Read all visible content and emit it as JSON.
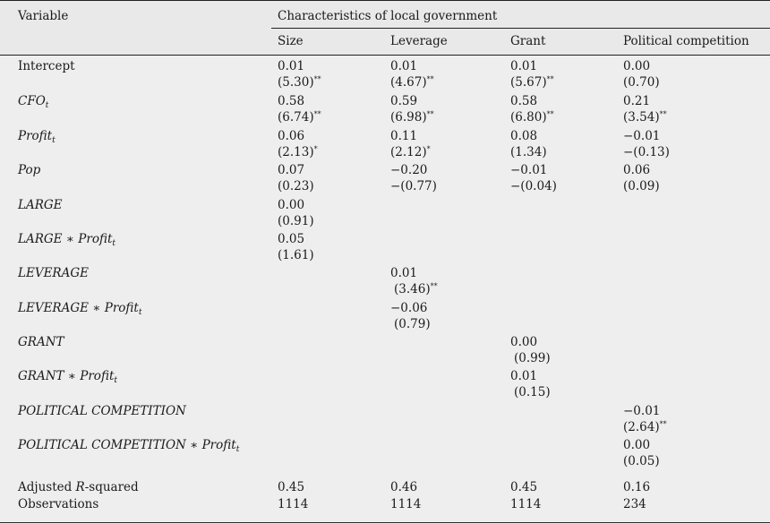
{
  "header": {
    "variable": "Variable",
    "group": "Characteristics of local government",
    "columns": [
      "Size",
      "Leverage",
      "Grant",
      "Political competition"
    ]
  },
  "rows": [
    {
      "label": "Intercept",
      "italic": false,
      "sub": "",
      "cells": [
        [
          "0.01",
          "(5.30)",
          "**"
        ],
        [
          "0.01",
          "(4.67)",
          "**"
        ],
        [
          "0.01",
          "(5.67)",
          "**"
        ],
        [
          "0.00",
          "(0.70)",
          ""
        ]
      ]
    },
    {
      "label": "CFO",
      "italic": true,
      "sub": "t",
      "cells": [
        [
          "0.58",
          "(6.74)",
          "**"
        ],
        [
          "0.59",
          "(6.98)",
          "**"
        ],
        [
          "0.58",
          "(6.80)",
          "**"
        ],
        [
          "0.21",
          "(3.54)",
          "**"
        ]
      ]
    },
    {
      "label": "Profit",
      "italic": true,
      "sub": "t",
      "cells": [
        [
          "0.06",
          "(2.13)",
          "*"
        ],
        [
          "0.11",
          "(2.12)",
          "*"
        ],
        [
          "0.08",
          "(1.34)",
          ""
        ],
        [
          "−0.01",
          "−(0.13)",
          ""
        ]
      ]
    },
    {
      "label": "Pop",
      "italic": true,
      "sub": "",
      "cells": [
        [
          "0.07",
          "(0.23)",
          ""
        ],
        [
          "−0.20",
          "−(0.77)",
          ""
        ],
        [
          "−0.01",
          "−(0.04)",
          ""
        ],
        [
          "0.06",
          "(0.09)",
          ""
        ]
      ]
    },
    {
      "label": "LARGE",
      "italic": true,
      "sub": "",
      "cells": [
        [
          "0.00",
          "(0.91)",
          ""
        ],
        null,
        null,
        null
      ]
    },
    {
      "label": "LARGE ∗ Profit",
      "italic": true,
      "sub": "t",
      "cells": [
        [
          "0.05",
          "(1.61)",
          ""
        ],
        null,
        null,
        null
      ]
    },
    {
      "label": "LEVERAGE",
      "italic": true,
      "sub": "",
      "cells": [
        null,
        [
          "0.01",
          "(3.46)",
          "**"
        ],
        null,
        null
      ]
    },
    {
      "label": "LEVERAGE ∗ Profit",
      "italic": true,
      "sub": "t",
      "cells": [
        null,
        [
          "−0.06",
          "(0.79)",
          ""
        ],
        null,
        null
      ]
    },
    {
      "label": "GRANT",
      "italic": true,
      "sub": "",
      "cells": [
        null,
        null,
        [
          "0.00",
          "(0.99)",
          ""
        ],
        null
      ]
    },
    {
      "label": "GRANT ∗ Profit",
      "italic": true,
      "sub": "t",
      "cells": [
        null,
        null,
        [
          "0.01",
          "(0.15)",
          ""
        ],
        null
      ]
    },
    {
      "label": "POLITICAL COMPETITION",
      "italic": true,
      "sub": "",
      "cells": [
        null,
        null,
        null,
        [
          "−0.01",
          "(2.64)",
          "**"
        ]
      ]
    },
    {
      "label": "POLITICAL COMPETITION ∗ Profit",
      "italic": true,
      "sub": "t",
      "cells": [
        null,
        null,
        null,
        [
          "0.00",
          "(0.05)",
          ""
        ]
      ]
    }
  ],
  "footer": [
    {
      "label_pre": "Adjusted ",
      "label_it": "R",
      "label_post": "-squared",
      "values": [
        "0.45",
        "0.46",
        "0.45",
        "0.16"
      ]
    },
    {
      "label_pre": "Observations",
      "label_it": "",
      "label_post": "",
      "values": [
        "1114",
        "1114",
        "1114",
        "234"
      ]
    }
  ]
}
